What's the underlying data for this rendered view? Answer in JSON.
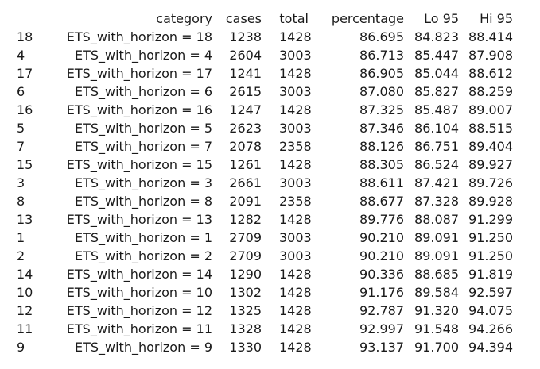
{
  "headers": {
    "category": "category",
    "cases": "cases",
    "total": "total",
    "percentage": "percentage",
    "lo95": "Lo 95",
    "hi95": "Hi 95"
  },
  "rows": [
    {
      "idx": "18",
      "category": "ETS_with_horizon = 18",
      "cases": "1238",
      "total": "1428",
      "percentage": "86.695",
      "lo95": "84.823",
      "hi95": "88.414"
    },
    {
      "idx": "4",
      "category": "ETS_with_horizon = 4",
      "cases": "2604",
      "total": "3003",
      "percentage": "86.713",
      "lo95": "85.447",
      "hi95": "87.908"
    },
    {
      "idx": "17",
      "category": "ETS_with_horizon = 17",
      "cases": "1241",
      "total": "1428",
      "percentage": "86.905",
      "lo95": "85.044",
      "hi95": "88.612"
    },
    {
      "idx": "6",
      "category": "ETS_with_horizon = 6",
      "cases": "2615",
      "total": "3003",
      "percentage": "87.080",
      "lo95": "85.827",
      "hi95": "88.259"
    },
    {
      "idx": "16",
      "category": "ETS_with_horizon = 16",
      "cases": "1247",
      "total": "1428",
      "percentage": "87.325",
      "lo95": "85.487",
      "hi95": "89.007"
    },
    {
      "idx": "5",
      "category": "ETS_with_horizon = 5",
      "cases": "2623",
      "total": "3003",
      "percentage": "87.346",
      "lo95": "86.104",
      "hi95": "88.515"
    },
    {
      "idx": "7",
      "category": "ETS_with_horizon = 7",
      "cases": "2078",
      "total": "2358",
      "percentage": "88.126",
      "lo95": "86.751",
      "hi95": "89.404"
    },
    {
      "idx": "15",
      "category": "ETS_with_horizon = 15",
      "cases": "1261",
      "total": "1428",
      "percentage": "88.305",
      "lo95": "86.524",
      "hi95": "89.927"
    },
    {
      "idx": "3",
      "category": "ETS_with_horizon = 3",
      "cases": "2661",
      "total": "3003",
      "percentage": "88.611",
      "lo95": "87.421",
      "hi95": "89.726"
    },
    {
      "idx": "8",
      "category": "ETS_with_horizon = 8",
      "cases": "2091",
      "total": "2358",
      "percentage": "88.677",
      "lo95": "87.328",
      "hi95": "89.928"
    },
    {
      "idx": "13",
      "category": "ETS_with_horizon = 13",
      "cases": "1282",
      "total": "1428",
      "percentage": "89.776",
      "lo95": "88.087",
      "hi95": "91.299"
    },
    {
      "idx": "1",
      "category": "ETS_with_horizon = 1",
      "cases": "2709",
      "total": "3003",
      "percentage": "90.210",
      "lo95": "89.091",
      "hi95": "91.250"
    },
    {
      "idx": "2",
      "category": "ETS_with_horizon = 2",
      "cases": "2709",
      "total": "3003",
      "percentage": "90.210",
      "lo95": "89.091",
      "hi95": "91.250"
    },
    {
      "idx": "14",
      "category": "ETS_with_horizon = 14",
      "cases": "1290",
      "total": "1428",
      "percentage": "90.336",
      "lo95": "88.685",
      "hi95": "91.819"
    },
    {
      "idx": "10",
      "category": "ETS_with_horizon = 10",
      "cases": "1302",
      "total": "1428",
      "percentage": "91.176",
      "lo95": "89.584",
      "hi95": "92.597"
    },
    {
      "idx": "12",
      "category": "ETS_with_horizon = 12",
      "cases": "1325",
      "total": "1428",
      "percentage": "92.787",
      "lo95": "91.320",
      "hi95": "94.075"
    },
    {
      "idx": "11",
      "category": "ETS_with_horizon = 11",
      "cases": "1328",
      "total": "1428",
      "percentage": "92.997",
      "lo95": "91.548",
      "hi95": "94.266"
    },
    {
      "idx": "9",
      "category": "ETS_with_horizon = 9",
      "cases": "1330",
      "total": "1428",
      "percentage": "93.137",
      "lo95": "91.700",
      "hi95": "94.394"
    }
  ]
}
